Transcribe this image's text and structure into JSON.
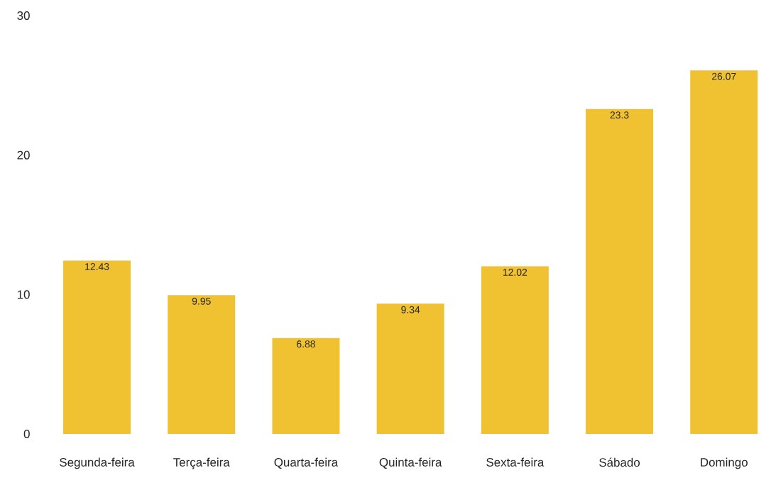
{
  "chart_data": {
    "type": "bar",
    "categories": [
      "Segunda-feira",
      "Terça-feira",
      "Quarta-feira",
      "Quinta-feira",
      "Sexta-feira",
      "Sábado",
      "Domingo"
    ],
    "values": [
      12.43,
      9.95,
      6.88,
      9.34,
      12.02,
      23.3,
      26.07
    ],
    "color": "#f0c232",
    "ylim": [
      0,
      30
    ],
    "yticks": [
      0,
      10,
      20,
      30
    ],
    "grid": false,
    "data_labels": true
  }
}
